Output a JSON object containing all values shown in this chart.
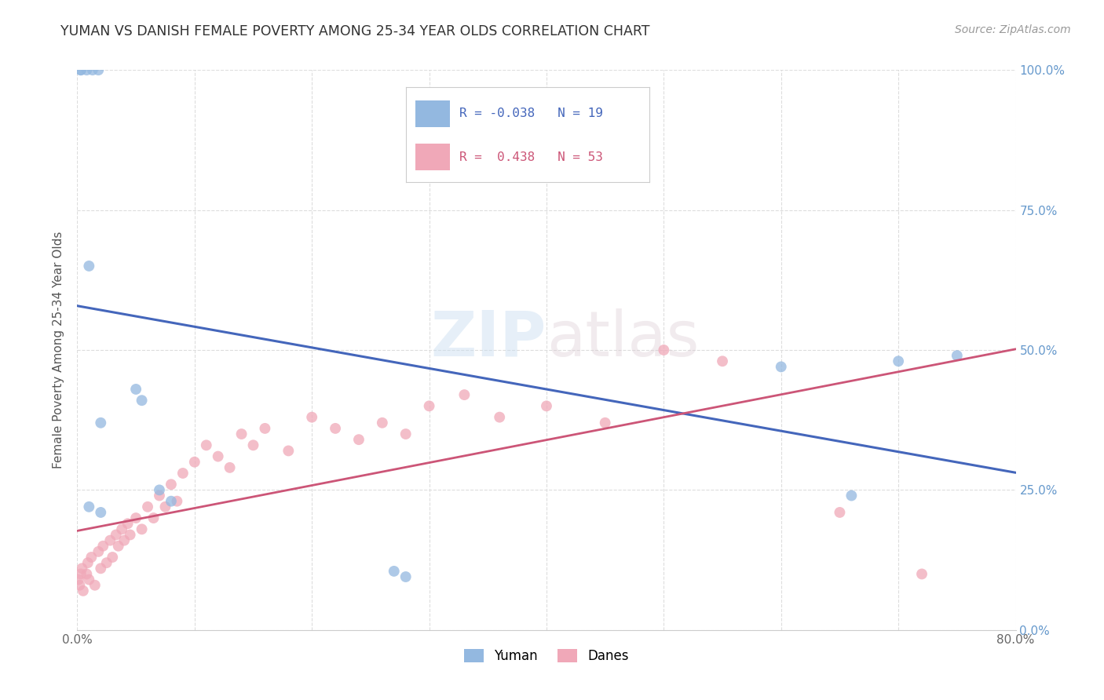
{
  "title": "YUMAN VS DANISH FEMALE POVERTY AMONG 25-34 YEAR OLDS CORRELATION CHART",
  "source": "Source: ZipAtlas.com",
  "ylabel": "Female Poverty Among 25-34 Year Olds",
  "watermark": "ZIPatlas",
  "legend_blue_r": "-0.038",
  "legend_blue_n": "19",
  "legend_pink_r": "0.438",
  "legend_pink_n": "53",
  "legend_blue_label": "Yuman",
  "legend_pink_label": "Danes",
  "blue_color": "#93b8e0",
  "pink_color": "#f0a8b8",
  "blue_line_color": "#4466bb",
  "pink_line_color": "#cc5577",
  "yuman_x": [
    0.003,
    0.008,
    0.013,
    0.018,
    0.003,
    0.01,
    0.02,
    0.05,
    0.055,
    0.01,
    0.02,
    0.6,
    0.7,
    0.75,
    0.66,
    0.07,
    0.08,
    0.27,
    0.28
  ],
  "yuman_y": [
    1.0,
    1.0,
    1.0,
    1.0,
    1.0,
    0.65,
    0.37,
    0.43,
    0.41,
    0.22,
    0.21,
    0.47,
    0.48,
    0.49,
    0.24,
    0.25,
    0.23,
    0.105,
    0.095
  ],
  "danes_x": [
    0.001,
    0.002,
    0.003,
    0.004,
    0.005,
    0.008,
    0.009,
    0.01,
    0.012,
    0.015,
    0.018,
    0.02,
    0.022,
    0.025,
    0.028,
    0.03,
    0.033,
    0.035,
    0.038,
    0.04,
    0.043,
    0.045,
    0.05,
    0.055,
    0.06,
    0.065,
    0.07,
    0.075,
    0.08,
    0.085,
    0.09,
    0.1,
    0.11,
    0.12,
    0.13,
    0.14,
    0.15,
    0.16,
    0.18,
    0.2,
    0.22,
    0.24,
    0.26,
    0.28,
    0.3,
    0.33,
    0.36,
    0.4,
    0.45,
    0.5,
    0.55,
    0.65,
    0.72
  ],
  "danes_y": [
    0.09,
    0.08,
    0.1,
    0.11,
    0.07,
    0.1,
    0.12,
    0.09,
    0.13,
    0.08,
    0.14,
    0.11,
    0.15,
    0.12,
    0.16,
    0.13,
    0.17,
    0.15,
    0.18,
    0.16,
    0.19,
    0.17,
    0.2,
    0.18,
    0.22,
    0.2,
    0.24,
    0.22,
    0.26,
    0.23,
    0.28,
    0.3,
    0.33,
    0.31,
    0.29,
    0.35,
    0.33,
    0.36,
    0.32,
    0.38,
    0.36,
    0.34,
    0.37,
    0.35,
    0.4,
    0.42,
    0.38,
    0.4,
    0.37,
    0.5,
    0.48,
    0.21,
    0.1
  ],
  "xlim": [
    0.0,
    0.8
  ],
  "ylim": [
    0.0,
    1.0
  ],
  "grid_color": "#dddddd",
  "background_color": "#ffffff"
}
